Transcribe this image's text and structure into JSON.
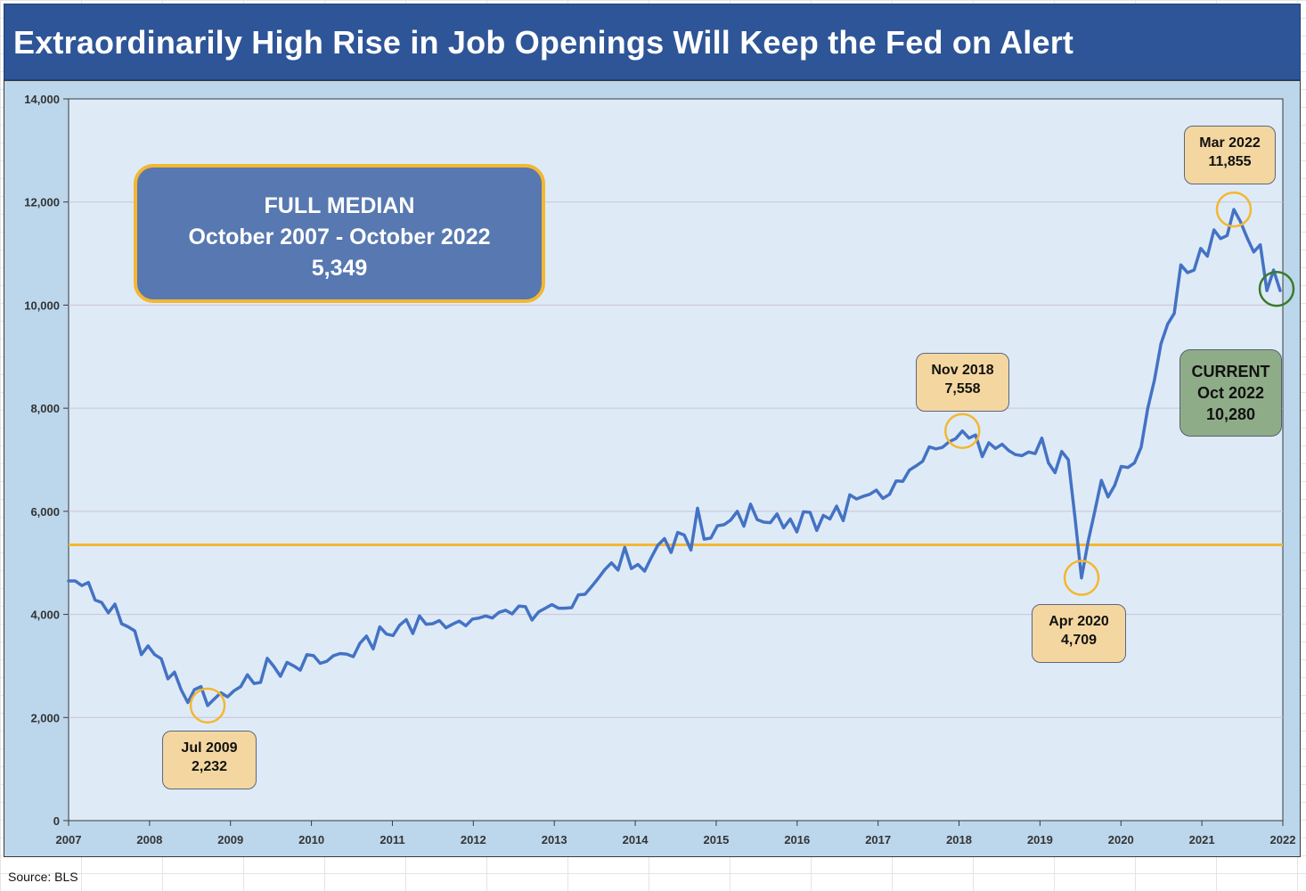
{
  "title": "Extraordinarily High Rise in Job Openings Will Keep the Fed on Alert",
  "source": "Source: BLS",
  "median_box": {
    "line1": "FULL MEDIAN",
    "line2": "October 2007 - October 2022",
    "line3": "5,349"
  },
  "callouts": [
    {
      "id": "jul2009",
      "line1": "Jul 2009",
      "line2": "2,232"
    },
    {
      "id": "nov2018",
      "line1": "Nov 2018",
      "line2": "7,558"
    },
    {
      "id": "apr2020",
      "line1": "Apr 2020",
      "line2": "4,709"
    },
    {
      "id": "mar2022",
      "line1": "Mar 2022",
      "line2": "11,855"
    }
  ],
  "current_box": {
    "line1": "CURRENT",
    "line2": "Oct 2022",
    "line3": "10,280"
  },
  "colors": {
    "line": "#4472c4",
    "median_line": "#f4b731",
    "highlight_circle": "#f4b731",
    "current_circle": "#3c7a2e",
    "plot_bg": "#deebf7",
    "frame_bg": "#bcd7ec",
    "title_bg": "#2e5597"
  },
  "chart_data": {
    "type": "line",
    "title": "Extraordinarily High Rise in Job Openings Will Keep the Fed on Alert",
    "xlabel": "",
    "ylabel": "",
    "ylim": [
      0,
      14000
    ],
    "yticks": [
      0,
      2000,
      4000,
      6000,
      8000,
      10000,
      12000,
      14000
    ],
    "ytick_labels": [
      "0",
      "2,000",
      "4,000",
      "6,000",
      "8,000",
      "10,000",
      "12,000",
      "14,000"
    ],
    "xtick_labels": [
      "2007",
      "2008",
      "2009",
      "2010",
      "2011",
      "2012",
      "2013",
      "2014",
      "2015",
      "2016",
      "2017",
      "2018",
      "2019",
      "2020",
      "2021",
      "2022"
    ],
    "grid": {
      "horizontal": true,
      "vertical": false
    },
    "median": 5349,
    "series": [
      {
        "values": [
          4650,
          4650,
          4560,
          4620,
          4280,
          4230,
          4030,
          4200,
          3820,
          3760,
          3680,
          3220,
          3390,
          3220,
          3140,
          2750,
          2880,
          2540,
          2290,
          2540,
          2600,
          2232,
          2360,
          2480,
          2400,
          2520,
          2600,
          2830,
          2660,
          2680,
          3150,
          2990,
          2800,
          3070,
          3000,
          2920,
          3220,
          3200,
          3050,
          3090,
          3200,
          3240,
          3230,
          3180,
          3440,
          3580,
          3330,
          3760,
          3620,
          3590,
          3790,
          3900,
          3630,
          3970,
          3810,
          3820,
          3880,
          3740,
          3810,
          3870,
          3780,
          3910,
          3930,
          3970,
          3930,
          4040,
          4080,
          4010,
          4160,
          4150,
          3890,
          4050,
          4120,
          4190,
          4120,
          4120,
          4130,
          4380,
          4390,
          4540,
          4700,
          4870,
          5000,
          4860,
          5300,
          4890,
          4970,
          4840,
          5100,
          5340,
          5470,
          5200,
          5590,
          5540,
          5250,
          6060,
          5460,
          5480,
          5720,
          5740,
          5830,
          6000,
          5710,
          6140,
          5840,
          5790,
          5780,
          5950,
          5680,
          5850,
          5600,
          5990,
          5980,
          5630,
          5920,
          5850,
          6100,
          5820,
          6320,
          6240,
          6290,
          6330,
          6410,
          6250,
          6330,
          6590,
          6580,
          6800,
          6880,
          6970,
          7250,
          7210,
          7240,
          7350,
          7410,
          7558,
          7420,
          7480,
          7060,
          7330,
          7220,
          7300,
          7180,
          7100,
          7080,
          7150,
          7120,
          7420,
          6940,
          6750,
          7160,
          7000,
          5890,
          4709,
          5420,
          6000,
          6600,
          6280,
          6500,
          6870,
          6850,
          6940,
          7240,
          8000,
          8540,
          9250,
          9630,
          9840,
          10780,
          10630,
          10680,
          11100,
          10950,
          11460,
          11290,
          11350,
          11855,
          11620,
          11310,
          11030,
          11170,
          10280,
          10680,
          10280
        ]
      }
    ],
    "annotations": [
      {
        "label": "Jul 2009",
        "value": "2,232"
      },
      {
        "label": "Nov 2018",
        "value": "7,558"
      },
      {
        "label": "Apr 2020",
        "value": "4,709"
      },
      {
        "label": "Mar 2022",
        "value": "11,855"
      },
      {
        "label": "CURRENT Oct 2022",
        "value": "10,280"
      }
    ]
  }
}
